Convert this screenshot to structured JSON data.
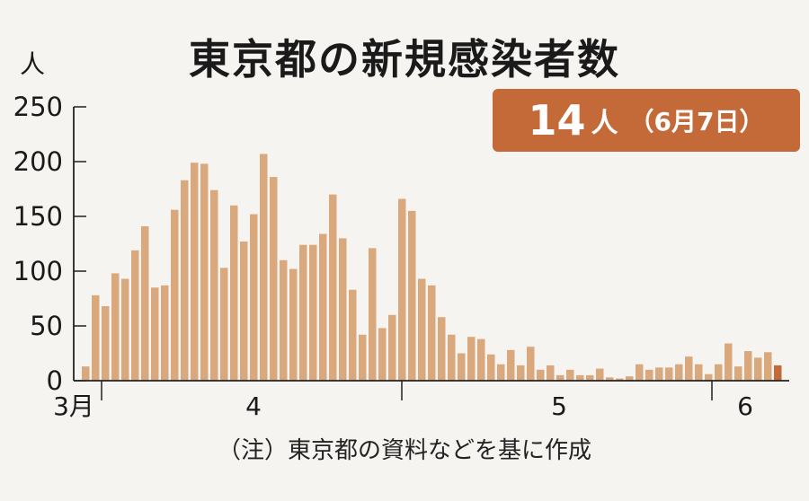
{
  "chart_data": {
    "type": "bar",
    "title": "東京都の新規感染者数",
    "ylabel": "人",
    "ylim": [
      0,
      250
    ],
    "yticks": [
      0,
      50,
      100,
      150,
      200,
      250
    ],
    "x_month_labels": [
      "3月",
      "4",
      "5",
      "6"
    ],
    "highlight": {
      "value_text": "14",
      "unit": "人",
      "date_text": "（6月7日）"
    },
    "note": "（注）東京都の資料などを基に作成",
    "grid": false,
    "values": [
      13,
      78,
      68,
      98,
      93,
      119,
      141,
      85,
      87,
      156,
      183,
      199,
      198,
      174,
      103,
      160,
      127,
      152,
      207,
      186,
      110,
      102,
      124,
      124,
      134,
      170,
      130,
      83,
      42,
      121,
      48,
      60,
      166,
      155,
      93,
      87,
      58,
      42,
      25,
      40,
      38,
      24,
      15,
      28,
      14,
      31,
      10,
      14,
      5,
      10,
      5,
      5,
      11,
      3,
      2,
      4,
      15,
      10,
      12,
      12,
      15,
      22,
      15,
      6,
      15,
      34,
      13,
      27,
      21,
      26,
      14
    ],
    "highlight_index": 70,
    "colors": {
      "bar": "#d9a87c",
      "bar_last": "#c46a39",
      "badge": "#c46a39",
      "axis": "#222222"
    }
  }
}
